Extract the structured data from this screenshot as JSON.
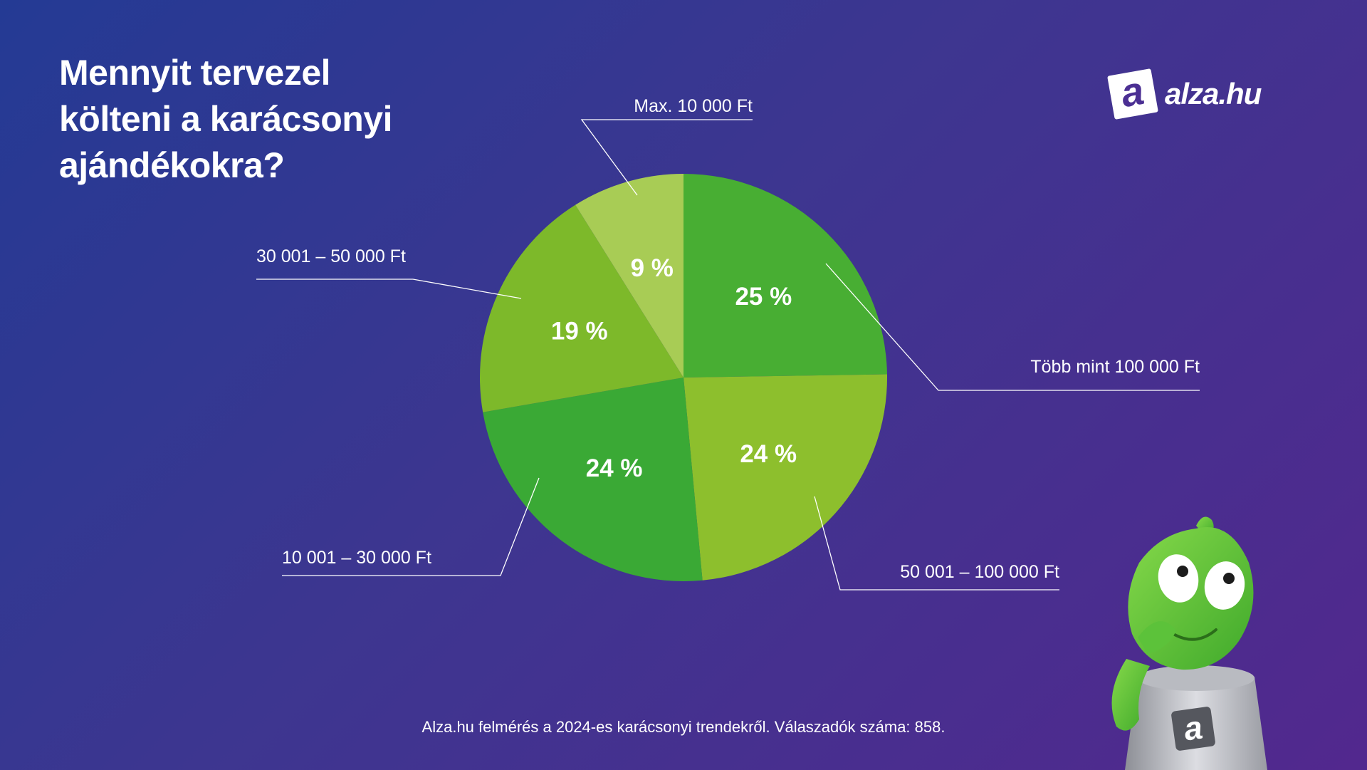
{
  "title": {
    "line1": "Mennyit tervezel",
    "line2": "költeni a karácsonyi",
    "line3": "ajándékokra?"
  },
  "brand": {
    "mark": "a",
    "name": "alza.hu"
  },
  "footnote": "Alza.hu felmérés a 2024-es karácsonyi trendekről. Válaszadók száma: 858.",
  "chart_data": {
    "type": "pie",
    "title": "Mennyit tervezel költeni a karácsonyi ajándékokra?",
    "unit": "%",
    "start": "12 o'clock, clockwise",
    "slices": [
      {
        "label": "Több mint 100 000 Ft",
        "value": 25,
        "value_label": "25 %",
        "color": "#48ae33"
      },
      {
        "label": "50 001 – 100 000 Ft",
        "value": 24,
        "value_label": "24 %",
        "color": "#8dbf2d"
      },
      {
        "label": "10 001 – 30 000 Ft",
        "value": 24,
        "value_label": "24 %",
        "color": "#3aa935"
      },
      {
        "label": "30 001 – 50 000 Ft",
        "value": 19,
        "value_label": "19 %",
        "color": "#7db92a"
      },
      {
        "label": "Max. 10 000 Ft",
        "value": 9,
        "value_label": "9 %",
        "color": "#a8cc55"
      }
    ]
  }
}
